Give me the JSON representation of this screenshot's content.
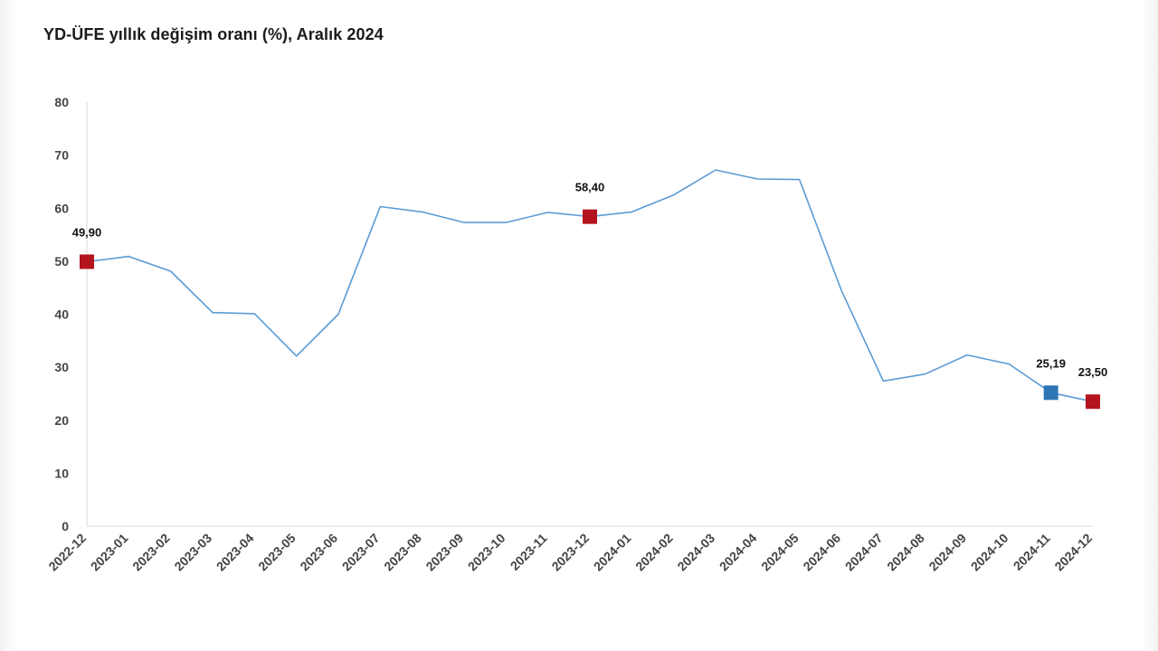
{
  "title": "YD-ÜFE yıllık değişim oranı (%), Aralık 2024",
  "colors": {
    "line": "#5b9bd5",
    "marker_red": "#b3141e",
    "marker_blue": "#2e75b6",
    "axis": "#d9d9d9"
  },
  "chart_data": {
    "type": "line",
    "title": "YD-ÜFE yıllık değişim oranı (%), Aralık 2024",
    "xlabel": "",
    "ylabel": "",
    "ylim": [
      0,
      80
    ],
    "yticks": [
      0,
      10,
      20,
      30,
      40,
      50,
      60,
      70,
      80
    ],
    "grid": false,
    "categories": [
      "2022-12",
      "2023-01",
      "2023-02",
      "2023-03",
      "2023-04",
      "2023-05",
      "2023-06",
      "2023-07",
      "2023-08",
      "2023-09",
      "2023-10",
      "2023-11",
      "2023-12",
      "2024-01",
      "2024-02",
      "2024-03",
      "2024-04",
      "2024-05",
      "2024-06",
      "2024-07",
      "2024-08",
      "2024-09",
      "2024-10",
      "2024-11",
      "2024-12"
    ],
    "series": [
      {
        "name": "YD-ÜFE",
        "values": [
          49.9,
          50.9,
          48.1,
          40.3,
          40.1,
          32.1,
          40.0,
          60.3,
          59.3,
          57.3,
          57.3,
          59.2,
          58.4,
          59.3,
          62.5,
          67.2,
          65.5,
          65.4,
          44.5,
          27.4,
          28.7,
          32.3,
          30.6,
          25.19,
          23.5
        ]
      }
    ],
    "highlights": [
      {
        "index": 0,
        "label": "49,90",
        "color": "red"
      },
      {
        "index": 12,
        "label": "58,40",
        "color": "red"
      },
      {
        "index": 23,
        "label": "25,19",
        "color": "blue"
      },
      {
        "index": 24,
        "label": "23,50",
        "color": "red"
      }
    ]
  }
}
